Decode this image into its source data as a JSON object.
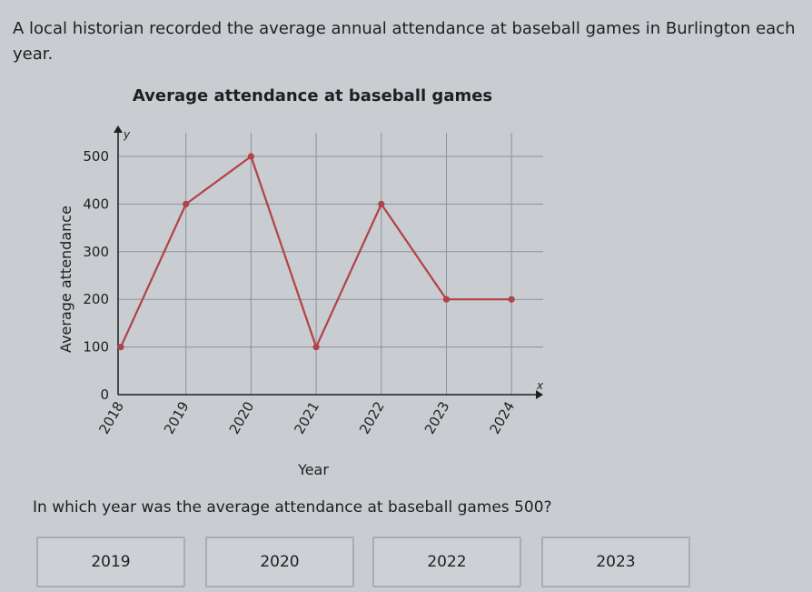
{
  "question": {
    "intro": "A local historian recorded the average annual attendance at baseball games in Burlington each year.",
    "prompt": "In which year was the average attendance at baseball games 500?"
  },
  "choices": [
    "2019",
    "2020",
    "2022",
    "2023"
  ],
  "chart_data": {
    "type": "line",
    "title": "Average attendance at baseball games",
    "xlabel": "Year",
    "ylabel": "Average attendance",
    "x_axis_name": "x",
    "y_axis_name": "y",
    "categories": [
      "2018",
      "2019",
      "2020",
      "2021",
      "2022",
      "2023",
      "2024"
    ],
    "values": [
      100,
      400,
      500,
      100,
      400,
      200,
      200
    ],
    "y_ticks": [
      0,
      100,
      200,
      300,
      400,
      500
    ],
    "ylim": [
      0,
      500
    ],
    "grid": true,
    "line_color": "#b1424a",
    "point_color": "#b1424a"
  }
}
